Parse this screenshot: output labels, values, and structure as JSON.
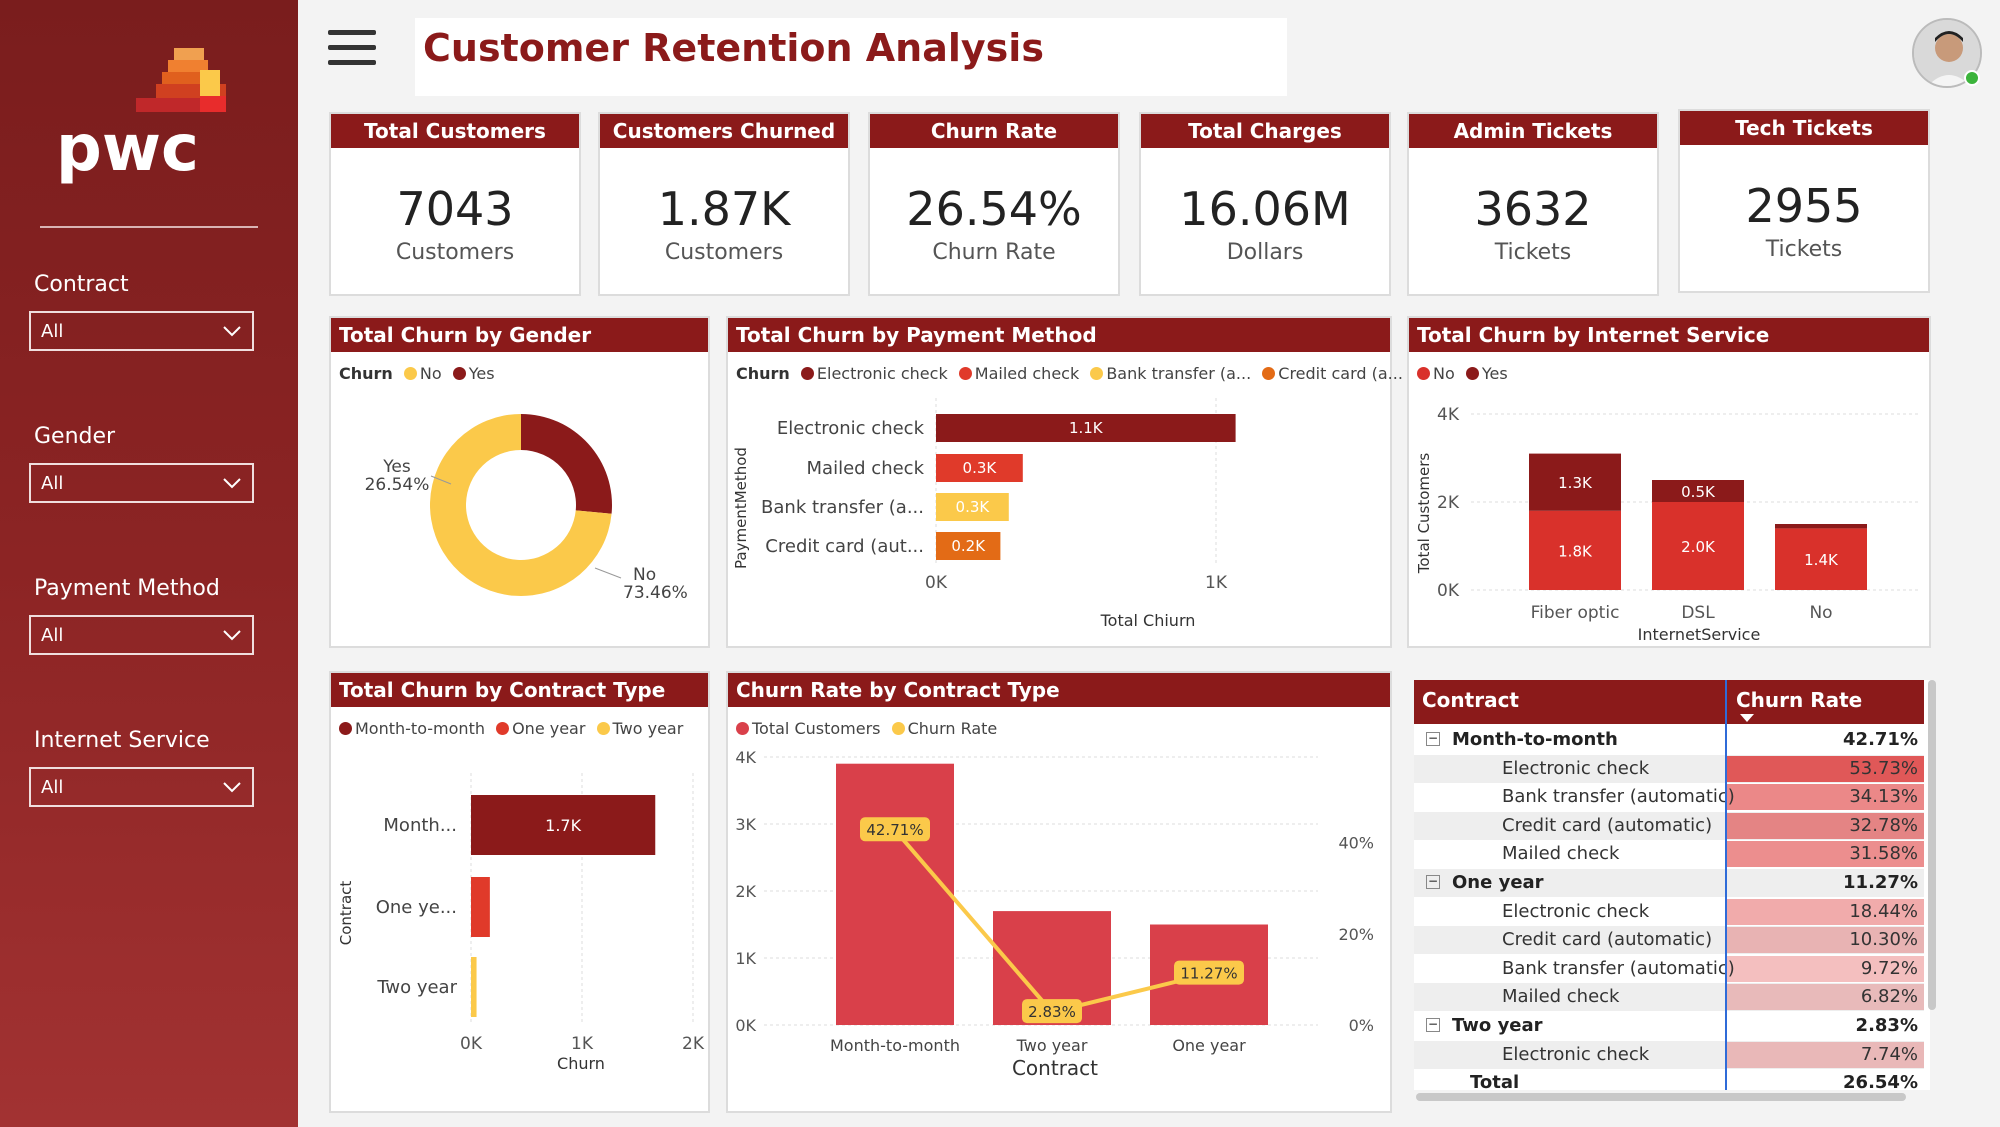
{
  "dashboard": {
    "title": "Customer Retention Analysis",
    "brand": "pwc",
    "accent_color": "#8b1a1a",
    "user_status": "online"
  },
  "filters": [
    {
      "label": "Contract",
      "value": "All"
    },
    {
      "label": "Gender",
      "value": "All"
    },
    {
      "label": "Payment Method",
      "value": "All"
    },
    {
      "label": "Internet Service",
      "value": "All"
    }
  ],
  "kpis": [
    {
      "title": "Total Customers",
      "value": "7043",
      "unit": "Customers"
    },
    {
      "title": "Customers Churned",
      "value": "1.87K",
      "unit": "Customers"
    },
    {
      "title": "Churn Rate",
      "value": "26.54%",
      "unit": "Churn Rate"
    },
    {
      "title": "Total Charges",
      "value": "16.06M",
      "unit": "Dollars"
    },
    {
      "title": "Admin Tickets",
      "value": "3632",
      "unit": "Tickets"
    },
    {
      "title": "Tech Tickets",
      "value": "2955",
      "unit": "Tickets"
    }
  ],
  "panels": {
    "gender": {
      "title": "Total Churn by Gender",
      "legend_title": "Churn",
      "legend": [
        "No",
        "Yes"
      ]
    },
    "payment": {
      "title": "Total Churn by Payment Method",
      "legend_title": "Churn",
      "legend": [
        "Electronic check",
        "Mailed check",
        "Bank transfer (a...",
        "Credit card (a..."
      ]
    },
    "internet": {
      "title": "Total Churn by Internet Service",
      "legend": [
        "No",
        "Yes"
      ]
    },
    "contract": {
      "title": "Total Churn by Contract Type",
      "legend": [
        "Month-to-month",
        "One year",
        "Two year"
      ]
    },
    "rate": {
      "title": "Churn Rate by Contract Type",
      "legend": [
        "Total Customers",
        "Churn Rate"
      ]
    }
  },
  "chart_data": [
    {
      "type": "pie",
      "title": "Total Churn by Gender",
      "categories": [
        "Yes",
        "No"
      ],
      "values": [
        26.54,
        73.46
      ],
      "labels": [
        "Yes",
        "No"
      ],
      "value_labels": [
        "26.54%",
        "73.46%"
      ],
      "colors": [
        "#8b1a1a",
        "#fbc94a"
      ]
    },
    {
      "type": "bar",
      "title": "Total Churn by Payment Method",
      "orientation": "horizontal",
      "ylabel": "PaymentMethod",
      "xlabel": "Total Chiurn",
      "categories": [
        "Electronic check",
        "Mailed check",
        "Bank transfer (a...",
        "Credit card (aut..."
      ],
      "values": [
        1.07,
        0.31,
        0.26,
        0.23
      ],
      "value_labels": [
        "1.1K",
        "0.3K",
        "0.3K",
        "0.2K"
      ],
      "colors": [
        "#8b1a1a",
        "#e03a2a",
        "#fbc94a",
        "#e36b16"
      ],
      "xticks": [
        "0K",
        "1K"
      ],
      "xlim": [
        0,
        1.0
      ]
    },
    {
      "type": "bar",
      "title": "Total Churn by Internet Service",
      "stacked": true,
      "xlabel": "InternetService",
      "ylabel": "Total Customers",
      "categories": [
        "Fiber optic",
        "DSL",
        "No"
      ],
      "series": [
        {
          "name": "No",
          "values": [
            1.8,
            2.0,
            1.4
          ],
          "labels": [
            "1.8K",
            "2.0K",
            "1.4K"
          ],
          "color": "#d9312b"
        },
        {
          "name": "Yes",
          "values": [
            1.3,
            0.5,
            0.1
          ],
          "labels": [
            "1.3K",
            "0.5K",
            ""
          ],
          "color": "#8b1a1a"
        }
      ],
      "yticks": [
        "0K",
        "2K",
        "4K"
      ],
      "ylim": [
        0,
        4
      ]
    },
    {
      "type": "bar",
      "title": "Total Churn by Contract Type",
      "orientation": "horizontal",
      "ylabel": "Contract",
      "xlabel": "Churn",
      "categories": [
        "Month...",
        "One ye...",
        "Two year"
      ],
      "values": [
        1.66,
        0.17,
        0.05
      ],
      "value_labels": [
        "1.7K",
        "",
        ""
      ],
      "colors": [
        "#8b1a1a",
        "#e03a2a",
        "#fbc94a"
      ],
      "xticks": [
        "0K",
        "1K",
        "2K"
      ],
      "xlim": [
        0,
        2
      ]
    },
    {
      "type": "bar",
      "title": "Churn Rate by Contract Type",
      "combo": "bar+line",
      "xlabel": "Contract",
      "categories": [
        "Month-to-month",
        "Two year",
        "One year"
      ],
      "series": [
        {
          "name": "Total Customers",
          "values": [
            3.9,
            1.7,
            1.5
          ],
          "color": "#d9404a"
        },
        {
          "name": "Churn Rate",
          "values": [
            42.71,
            2.83,
            11.27
          ],
          "labels": [
            "42.71%",
            "2.83%",
            "11.27%"
          ],
          "color": "#fbc94a"
        }
      ],
      "yticks_left": [
        "0K",
        "1K",
        "2K",
        "3K",
        "4K"
      ],
      "yticks_right": [
        "0%",
        "20%",
        "40%"
      ],
      "ylim_left": [
        0,
        4
      ],
      "ylim_right": [
        0,
        50
      ]
    },
    {
      "type": "table",
      "columns": [
        "Contract",
        "Churn Rate"
      ],
      "rows": [
        {
          "label": "Month-to-month",
          "value": "42.71%",
          "level": 0,
          "rate": 42.71
        },
        {
          "label": "Electronic check",
          "value": "53.73%",
          "level": 1,
          "rate": 53.73
        },
        {
          "label": "Bank transfer (automatic)",
          "value": "34.13%",
          "level": 1,
          "rate": 34.13
        },
        {
          "label": "Credit card (automatic)",
          "value": "32.78%",
          "level": 1,
          "rate": 32.78
        },
        {
          "label": "Mailed check",
          "value": "31.58%",
          "level": 1,
          "rate": 31.58
        },
        {
          "label": "One year",
          "value": "11.27%",
          "level": 0,
          "rate": 11.27
        },
        {
          "label": "Electronic check",
          "value": "18.44%",
          "level": 1,
          "rate": 18.44
        },
        {
          "label": "Credit card (automatic)",
          "value": "10.30%",
          "level": 1,
          "rate": 10.3
        },
        {
          "label": "Bank transfer (automatic)",
          "value": "9.72%",
          "level": 1,
          "rate": 9.72
        },
        {
          "label": "Mailed check",
          "value": "6.82%",
          "level": 1,
          "rate": 6.82
        },
        {
          "label": "Two year",
          "value": "2.83%",
          "level": 0,
          "rate": 2.83
        },
        {
          "label": "Electronic check",
          "value": "7.74%",
          "level": 1,
          "rate": 7.74
        },
        {
          "label": "Total",
          "value": "26.54%",
          "level": -1,
          "rate": 26.54
        }
      ]
    }
  ]
}
